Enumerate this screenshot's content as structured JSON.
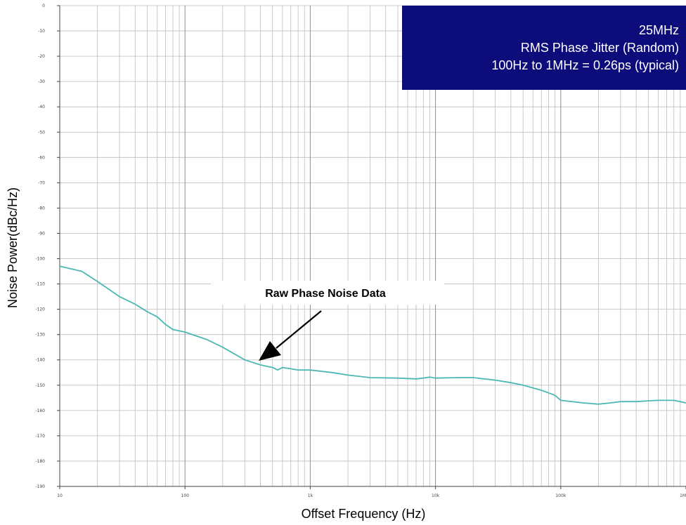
{
  "chart_data": {
    "type": "line",
    "xscale": "log",
    "xlim": [
      10,
      1000000
    ],
    "ylim": [
      -190,
      0
    ],
    "ystep": 10,
    "grid": true,
    "xlabel": "Offset Frequency (Hz)",
    "ylabel": "Noise Power(dBc/Hz)",
    "xtick_labels": [
      {
        "value": 10,
        "label": "10"
      },
      {
        "value": 100,
        "label": "100"
      },
      {
        "value": 1000,
        "label": "1k"
      },
      {
        "value": 10000,
        "label": "10k"
      },
      {
        "value": 100000,
        "label": "100k"
      },
      {
        "value": 1000000,
        "label": "1M"
      }
    ],
    "series_color": "#4cb8b2",
    "series": [
      {
        "points": [
          [
            10,
            -103
          ],
          [
            15,
            -105
          ],
          [
            20,
            -109
          ],
          [
            30,
            -115
          ],
          [
            40,
            -118
          ],
          [
            50,
            -121
          ],
          [
            60,
            -123
          ],
          [
            70,
            -126
          ],
          [
            80,
            -128
          ],
          [
            100,
            -129
          ],
          [
            150,
            -132
          ],
          [
            200,
            -135
          ],
          [
            300,
            -140
          ],
          [
            400,
            -142
          ],
          [
            500,
            -143
          ],
          [
            550,
            -144
          ],
          [
            600,
            -143
          ],
          [
            700,
            -143.5
          ],
          [
            800,
            -144
          ],
          [
            1000,
            -144
          ],
          [
            1500,
            -145
          ],
          [
            2000,
            -146
          ],
          [
            3000,
            -147
          ],
          [
            5000,
            -147.2
          ],
          [
            7000,
            -147.5
          ],
          [
            8000,
            -147.2
          ],
          [
            9000,
            -146.8
          ],
          [
            10000,
            -147.2
          ],
          [
            15000,
            -147
          ],
          [
            20000,
            -147
          ],
          [
            30000,
            -148
          ],
          [
            40000,
            -149
          ],
          [
            50000,
            -150
          ],
          [
            70000,
            -152
          ],
          [
            90000,
            -154
          ],
          [
            100000,
            -156
          ],
          [
            150000,
            -157
          ],
          [
            200000,
            -157.5
          ],
          [
            250000,
            -157
          ],
          [
            300000,
            -156.5
          ],
          [
            400000,
            -156.5
          ],
          [
            500000,
            -156.2
          ],
          [
            600000,
            -156
          ],
          [
            700000,
            -156
          ],
          [
            800000,
            -156
          ],
          [
            900000,
            -156.5
          ],
          [
            1000000,
            -157
          ]
        ]
      }
    ]
  },
  "callout": {
    "label": "Raw Phase Noise Data"
  },
  "info_box": {
    "lines": [
      "25MHz",
      "RMS Phase Jitter (Random)",
      "100Hz to 1MHz = 0.26ps (typical)"
    ],
    "background": "#0c0c7a",
    "text_color": "#ffffff"
  }
}
